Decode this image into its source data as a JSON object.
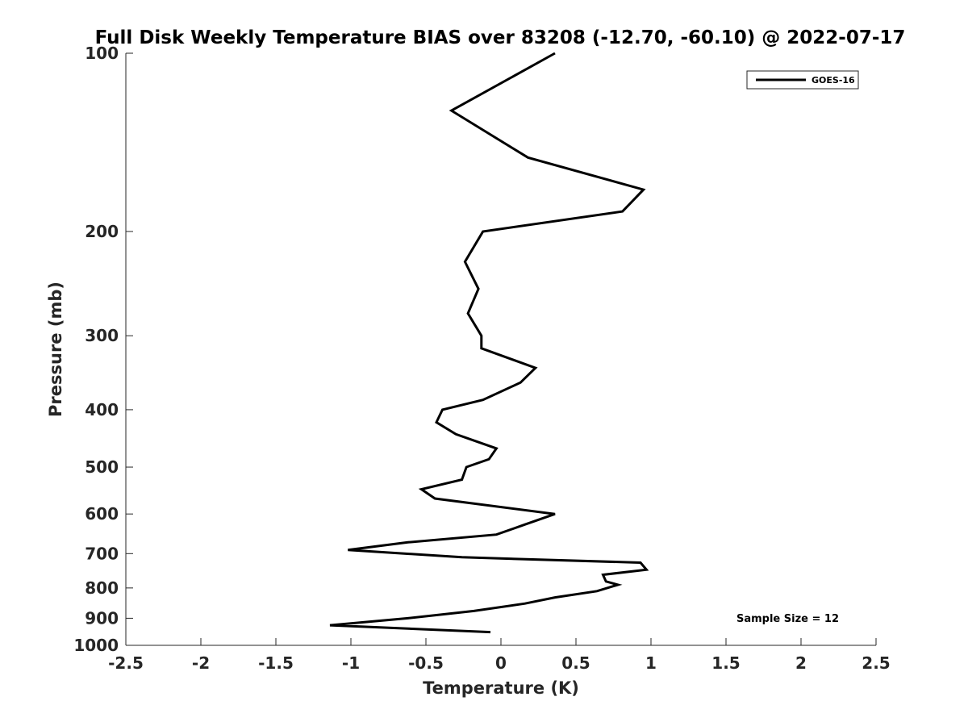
{
  "chart_data": {
    "type": "line",
    "title": "Full Disk Weekly Temperature BIAS over 83208 (-12.70, -60.10) @ 2022-07-17",
    "xlabel": "Temperature (K)",
    "ylabel": "Pressure (mb)",
    "xlim": [
      -2.5,
      2.5
    ],
    "ylim": [
      100,
      1000
    ],
    "y_scale": "log",
    "y_reversed": true,
    "x_ticks": [
      -2.5,
      -2,
      -1.5,
      -1,
      -0.5,
      0,
      0.5,
      1,
      1.5,
      2,
      2.5
    ],
    "x_tick_labels": [
      "-2.5",
      "-2",
      "-1.5",
      "-1",
      "-0.5",
      "0",
      "0.5",
      "1",
      "1.5",
      "2",
      "2.5"
    ],
    "y_ticks": [
      100,
      200,
      300,
      400,
      500,
      600,
      700,
      800,
      900,
      1000
    ],
    "y_tick_labels": [
      "100",
      "200",
      "300",
      "400",
      "500",
      "600",
      "700",
      "800",
      "900",
      "1000"
    ],
    "grid": false,
    "legend_position": "top-right",
    "annotation": "Sample Size = 12",
    "series": [
      {
        "name": "GOES-16",
        "color": "#000000",
        "points": [
          {
            "x": 0.36,
            "y": 100
          },
          {
            "x": -0.33,
            "y": 125
          },
          {
            "x": 0.18,
            "y": 150
          },
          {
            "x": 0.95,
            "y": 170
          },
          {
            "x": 0.81,
            "y": 185
          },
          {
            "x": -0.12,
            "y": 200
          },
          {
            "x": -0.24,
            "y": 225
          },
          {
            "x": -0.15,
            "y": 250
          },
          {
            "x": -0.22,
            "y": 275
          },
          {
            "x": -0.13,
            "y": 300
          },
          {
            "x": -0.13,
            "y": 315
          },
          {
            "x": 0.23,
            "y": 340
          },
          {
            "x": 0.13,
            "y": 360
          },
          {
            "x": -0.12,
            "y": 385
          },
          {
            "x": -0.39,
            "y": 400
          },
          {
            "x": -0.43,
            "y": 420
          },
          {
            "x": -0.3,
            "y": 440
          },
          {
            "x": -0.03,
            "y": 465
          },
          {
            "x": -0.08,
            "y": 485
          },
          {
            "x": -0.23,
            "y": 500
          },
          {
            "x": -0.26,
            "y": 525
          },
          {
            "x": -0.53,
            "y": 545
          },
          {
            "x": -0.44,
            "y": 565
          },
          {
            "x": 0.36,
            "y": 600
          },
          {
            "x": 0.16,
            "y": 625
          },
          {
            "x": -0.03,
            "y": 650
          },
          {
            "x": -0.62,
            "y": 670
          },
          {
            "x": -1.02,
            "y": 690
          },
          {
            "x": -0.26,
            "y": 710
          },
          {
            "x": 0.93,
            "y": 725
          },
          {
            "x": 0.97,
            "y": 745
          },
          {
            "x": 0.68,
            "y": 760
          },
          {
            "x": 0.7,
            "y": 780
          },
          {
            "x": 0.78,
            "y": 790
          },
          {
            "x": 0.64,
            "y": 810
          },
          {
            "x": 0.36,
            "y": 830
          },
          {
            "x": 0.16,
            "y": 850
          },
          {
            "x": -0.18,
            "y": 875
          },
          {
            "x": -0.62,
            "y": 900
          },
          {
            "x": -1.14,
            "y": 925
          },
          {
            "x": -0.07,
            "y": 950
          }
        ]
      }
    ]
  }
}
